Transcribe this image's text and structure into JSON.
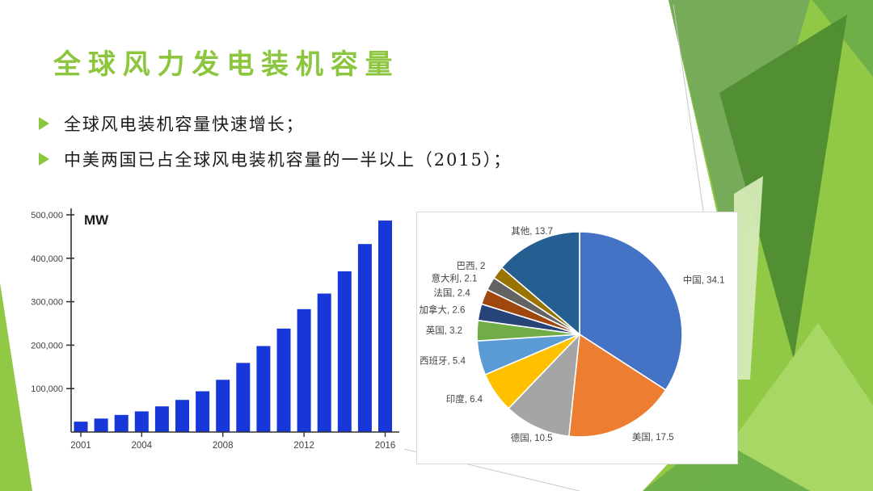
{
  "slide": {
    "title": "全球风力发电装机容量",
    "bullets": [
      "全球风电装机容量快速增长；",
      "中美两国已占全球风电装机容量的一半以上（2015）；"
    ]
  },
  "theme": {
    "accent_green": "#8CC63F",
    "facet_colors": {
      "lime": "#8DC63F",
      "sage": "#74A95A",
      "dark_green": "#4F8C33",
      "light_lime": "#A9D767",
      "pale_green": "#D3E8B4",
      "medium_green": "#6CAE47",
      "thin_line": "#C8C8C8"
    }
  },
  "chart_data": [
    {
      "type": "bar",
      "title": "",
      "unit_label": "MW",
      "xlabel": "",
      "ylabel": "MW",
      "categories": [
        "2001",
        "2002",
        "2003",
        "2004",
        "2005",
        "2006",
        "2007",
        "2008",
        "2009",
        "2010",
        "2011",
        "2012",
        "2013",
        "2014",
        "2015",
        "2016"
      ],
      "values": [
        23900,
        31100,
        39431,
        47620,
        59091,
        74052,
        93820,
        120291,
        159052,
        197956,
        238110,
        282842,
        318697,
        369862,
        432680,
        486790
      ],
      "x_tick_labels": [
        "2001",
        "2004",
        "2008",
        "2012",
        "2016"
      ],
      "x_tick_indices": [
        0,
        3,
        7,
        11,
        15
      ],
      "ylim": [
        0,
        500000
      ],
      "y_ticks": [
        100000,
        200000,
        300000,
        400000,
        500000
      ],
      "y_tick_labels": [
        "100,000",
        "200,000",
        "300,000",
        "400,000",
        "500,000"
      ],
      "grid": false,
      "legend": "none",
      "bar_color": "#1737D9",
      "axis_color": "#333333",
      "label_color": "#404040"
    },
    {
      "type": "pie",
      "title": "",
      "start_angle_deg": 0,
      "direction": "clockwise",
      "legend": "none",
      "label_format": "label, value",
      "label_color": "#444444",
      "slice_border_color": "#FFFFFF",
      "slices": [
        {
          "key": "china",
          "label": "中国",
          "value": 34.1,
          "color": "#4472C4"
        },
        {
          "key": "usa",
          "label": "美国",
          "value": 17.5,
          "color": "#ED7D31"
        },
        {
          "key": "germany",
          "label": "德国",
          "value": 10.5,
          "color": "#A5A5A5"
        },
        {
          "key": "india",
          "label": "印度",
          "value": 6.4,
          "color": "#FFC000"
        },
        {
          "key": "spain",
          "label": "西班牙",
          "value": 5.4,
          "color": "#5B9BD5"
        },
        {
          "key": "uk",
          "label": "英国",
          "value": 3.2,
          "color": "#70AD47"
        },
        {
          "key": "canada",
          "label": "加拿大",
          "value": 2.6,
          "color": "#264478"
        },
        {
          "key": "france",
          "label": "法国",
          "value": 2.4,
          "color": "#9E480E"
        },
        {
          "key": "italy",
          "label": "意大利",
          "value": 2.1,
          "color": "#636363"
        },
        {
          "key": "brazil",
          "label": "巴西",
          "value": 2,
          "color": "#997300"
        },
        {
          "key": "others",
          "label": "其他",
          "value": 13.7,
          "color": "#255E91"
        }
      ]
    }
  ]
}
